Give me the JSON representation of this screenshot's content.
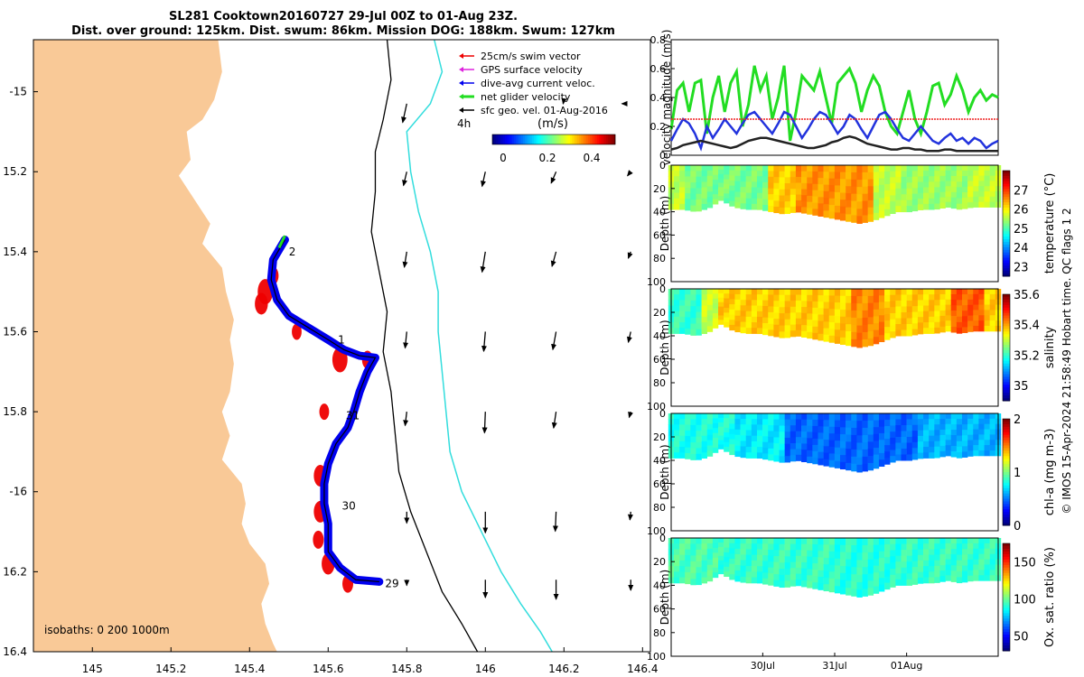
{
  "header": {
    "title_line1": "SL281 Cooktown20160727 29-Jul 00Z to 01-Aug 23Z.",
    "title_line2": "Dist. over ground: 125km. Dist. swum: 86km. Mission DOG: 188km. Swum: 127km"
  },
  "colors": {
    "land": "#f9c997",
    "track": "#0000ee",
    "swim": "#ee0000",
    "gps": "#dd22dd",
    "net": "#22dd22",
    "isobath200": "#000000",
    "isobath1000": "#33dddd",
    "vel_green": "#22dd22",
    "vel_blue": "#2233dd",
    "vel_red": "#ee2222",
    "vel_black": "#222222"
  },
  "map": {
    "xlim": [
      144.85,
      146.42
    ],
    "ylim": [
      16.4,
      14.87
    ],
    "x_ticks": [
      145,
      145.2,
      145.4,
      145.6,
      145.8,
      146,
      146.2,
      146.4
    ],
    "x_tick_labels": [
      "145",
      "145.2",
      "145.4",
      "145.6",
      "145.8",
      "146",
      "146.2",
      "146.4"
    ],
    "y_ticks": [
      15,
      15.2,
      15.4,
      15.6,
      15.8,
      16,
      16.2,
      16.4
    ],
    "y_tick_labels": [
      "-15",
      "15.2",
      "15.4",
      "15.6",
      "15.8",
      "-16",
      "16.2",
      "16.4"
    ],
    "legend": [
      {
        "label": "25cm/s swim vector",
        "color": "#ee0000"
      },
      {
        "label": "GPS surface velocity",
        "color": "#dd22dd"
      },
      {
        "label": "dive-avg current veloc.",
        "color": "#0000ee"
      },
      {
        "label": "net glider velocity",
        "color": "#22dd22"
      },
      {
        "label": "sfc geo. vel. 01-Aug-2016",
        "color": "#000000"
      }
    ],
    "legend_interval": "4h",
    "colorbar_units": "(m/s)",
    "colorbar_ticks": [
      "0",
      "0.2",
      "0.4"
    ],
    "isobath_label": "isobaths: 0   200  1000m",
    "day_labels": [
      {
        "text": "2",
        "lon": 145.5,
        "lat": 15.4
      },
      {
        "text": "1",
        "lon": 145.625,
        "lat": 15.62
      },
      {
        "text": "31",
        "lon": 145.645,
        "lat": 15.81
      },
      {
        "text": "30",
        "lon": 145.635,
        "lat": 16.035
      },
      {
        "text": "29",
        "lon": 145.745,
        "lat": 16.23
      }
    ],
    "track": [
      [
        145.49,
        15.37
      ],
      [
        145.46,
        15.42
      ],
      [
        145.455,
        15.47
      ],
      [
        145.47,
        15.52
      ],
      [
        145.5,
        15.56
      ],
      [
        145.55,
        15.59
      ],
      [
        145.6,
        15.62
      ],
      [
        145.64,
        15.645
      ],
      [
        145.68,
        15.66
      ],
      [
        145.72,
        15.665
      ],
      [
        145.7,
        15.7
      ],
      [
        145.68,
        15.75
      ],
      [
        145.665,
        15.8
      ],
      [
        145.65,
        15.84
      ],
      [
        145.62,
        15.88
      ],
      [
        145.6,
        15.93
      ],
      [
        145.59,
        15.98
      ],
      [
        145.59,
        16.03
      ],
      [
        145.6,
        16.08
      ],
      [
        145.6,
        16.12
      ],
      [
        145.6,
        16.15
      ],
      [
        145.63,
        16.19
      ],
      [
        145.67,
        16.22
      ],
      [
        145.73,
        16.225
      ]
    ],
    "swim_blobs": [
      [
        145.44,
        15.5,
        14
      ],
      [
        145.46,
        15.46,
        10
      ],
      [
        145.43,
        15.53,
        12
      ],
      [
        145.63,
        15.67,
        14
      ],
      [
        145.7,
        15.67,
        10
      ],
      [
        145.59,
        15.8,
        9
      ],
      [
        145.58,
        15.96,
        12
      ],
      [
        145.58,
        16.05,
        12
      ],
      [
        145.575,
        16.12,
        10
      ],
      [
        145.6,
        16.18,
        12
      ],
      [
        145.65,
        16.23,
        10
      ],
      [
        145.52,
        15.6,
        9
      ]
    ],
    "net_segment": [
      [
        145.475,
        15.39
      ],
      [
        145.49,
        15.36
      ]
    ],
    "geo_vectors": [
      [
        145.8,
        15.03,
        -0.05,
        0.23
      ],
      [
        146.2,
        15.02,
        -0.01,
        0.05
      ],
      [
        146.36,
        15.03,
        -0.06,
        0.0
      ],
      [
        145.8,
        15.2,
        -0.04,
        0.17
      ],
      [
        146.0,
        15.2,
        -0.04,
        0.18
      ],
      [
        146.18,
        15.2,
        -0.06,
        0.14
      ],
      [
        146.37,
        15.2,
        -0.04,
        0.05
      ],
      [
        145.8,
        15.4,
        -0.03,
        0.19
      ],
      [
        146.0,
        15.4,
        -0.04,
        0.25
      ],
      [
        146.18,
        15.4,
        -0.05,
        0.18
      ],
      [
        146.37,
        15.4,
        -0.03,
        0.08
      ],
      [
        145.8,
        15.6,
        -0.02,
        0.2
      ],
      [
        146.0,
        15.6,
        -0.02,
        0.24
      ],
      [
        146.18,
        15.6,
        -0.04,
        0.22
      ],
      [
        146.37,
        15.6,
        -0.03,
        0.13
      ],
      [
        145.8,
        15.8,
        -0.02,
        0.17
      ],
      [
        146.0,
        15.8,
        -0.01,
        0.26
      ],
      [
        146.18,
        15.8,
        -0.03,
        0.2
      ],
      [
        146.37,
        15.8,
        -0.02,
        0.07
      ],
      [
        145.8,
        16.05,
        0.0,
        0.14
      ],
      [
        146.0,
        16.05,
        0.0,
        0.26
      ],
      [
        146.18,
        16.05,
        -0.01,
        0.24
      ],
      [
        146.37,
        16.05,
        -0.01,
        0.1
      ],
      [
        145.8,
        16.22,
        0.0,
        0.07
      ],
      [
        146.0,
        16.22,
        0.0,
        0.22
      ],
      [
        146.18,
        16.22,
        0.0,
        0.24
      ],
      [
        146.37,
        16.22,
        0.0,
        0.13
      ]
    ],
    "coast": [
      [
        144.85,
        14.87
      ],
      [
        145.32,
        14.87
      ],
      [
        145.33,
        14.95
      ],
      [
        145.31,
        15.02
      ],
      [
        145.28,
        15.07
      ],
      [
        145.24,
        15.1
      ],
      [
        145.25,
        15.17
      ],
      [
        145.22,
        15.21
      ],
      [
        145.26,
        15.27
      ],
      [
        145.3,
        15.33
      ],
      [
        145.28,
        15.38
      ],
      [
        145.33,
        15.44
      ],
      [
        145.34,
        15.5
      ],
      [
        145.36,
        15.57
      ],
      [
        145.35,
        15.62
      ],
      [
        145.36,
        15.68
      ],
      [
        145.35,
        15.75
      ],
      [
        145.33,
        15.8
      ],
      [
        145.35,
        15.86
      ],
      [
        145.33,
        15.92
      ],
      [
        145.38,
        15.98
      ],
      [
        145.39,
        16.03
      ],
      [
        145.38,
        16.08
      ],
      [
        145.4,
        16.13
      ],
      [
        145.44,
        16.18
      ],
      [
        145.45,
        16.23
      ],
      [
        145.43,
        16.28
      ],
      [
        145.44,
        16.33
      ],
      [
        145.46,
        16.38
      ],
      [
        145.47,
        16.4
      ],
      [
        144.85,
        16.4
      ]
    ],
    "isobath200": [
      [
        145.75,
        14.87
      ],
      [
        145.76,
        14.97
      ],
      [
        145.74,
        15.07
      ],
      [
        145.72,
        15.15
      ],
      [
        145.72,
        15.25
      ],
      [
        145.71,
        15.35
      ],
      [
        145.73,
        15.45
      ],
      [
        145.75,
        15.55
      ],
      [
        145.74,
        15.65
      ],
      [
        145.76,
        15.75
      ],
      [
        145.77,
        15.85
      ],
      [
        145.78,
        15.95
      ],
      [
        145.81,
        16.05
      ],
      [
        145.85,
        16.15
      ],
      [
        145.89,
        16.25
      ],
      [
        145.94,
        16.33
      ],
      [
        145.98,
        16.4
      ]
    ],
    "isobath1000": [
      [
        145.87,
        14.87
      ],
      [
        145.89,
        14.95
      ],
      [
        145.86,
        15.03
      ],
      [
        145.8,
        15.1
      ],
      [
        145.81,
        15.2
      ],
      [
        145.83,
        15.3
      ],
      [
        145.86,
        15.4
      ],
      [
        145.88,
        15.5
      ],
      [
        145.88,
        15.6
      ],
      [
        145.89,
        15.7
      ],
      [
        145.9,
        15.8
      ],
      [
        145.91,
        15.9
      ],
      [
        145.94,
        16.0
      ],
      [
        145.99,
        16.1
      ],
      [
        146.04,
        16.2
      ],
      [
        146.09,
        16.28
      ],
      [
        146.14,
        16.35
      ],
      [
        146.17,
        16.4
      ]
    ]
  },
  "chart_data": [
    {
      "type": "line",
      "title": "",
      "ylabel": "velocity magnitude (m/s)",
      "ylim": [
        0,
        0.8
      ],
      "y_ticks": [
        "0",
        "0.2",
        "0.4",
        "0.6",
        "0.8"
      ],
      "xlim": [
        0,
        100
      ],
      "series": [
        {
          "name": "net glider velocity",
          "color": "#22dd22",
          "values": [
            0.18,
            0.45,
            0.5,
            0.3,
            0.5,
            0.52,
            0.15,
            0.4,
            0.55,
            0.3,
            0.5,
            0.58,
            0.2,
            0.35,
            0.62,
            0.45,
            0.55,
            0.25,
            0.4,
            0.62,
            0.1,
            0.3,
            0.55,
            0.5,
            0.45,
            0.58,
            0.4,
            0.22,
            0.5,
            0.55,
            0.6,
            0.5,
            0.3,
            0.45,
            0.55,
            0.48,
            0.3,
            0.2,
            0.15,
            0.3,
            0.45,
            0.25,
            0.15,
            0.3,
            0.48,
            0.5,
            0.35,
            0.42,
            0.55,
            0.45,
            0.3,
            0.4,
            0.45,
            0.38,
            0.42,
            0.4
          ]
        },
        {
          "name": "dive-avg current veloc.",
          "color": "#2233dd",
          "values": [
            0.1,
            0.18,
            0.25,
            0.22,
            0.15,
            0.05,
            0.2,
            0.12,
            0.18,
            0.25,
            0.2,
            0.15,
            0.22,
            0.28,
            0.3,
            0.25,
            0.2,
            0.15,
            0.22,
            0.3,
            0.28,
            0.2,
            0.12,
            0.18,
            0.25,
            0.3,
            0.28,
            0.22,
            0.15,
            0.2,
            0.28,
            0.25,
            0.18,
            0.12,
            0.2,
            0.28,
            0.3,
            0.25,
            0.18,
            0.12,
            0.1,
            0.15,
            0.2,
            0.15,
            0.1,
            0.08,
            0.12,
            0.15,
            0.1,
            0.12,
            0.08,
            0.12,
            0.1,
            0.05,
            0.08,
            0.1
          ]
        },
        {
          "name": "25cm/s swim vector",
          "color": "#ee2222",
          "values": [
            0.25,
            0.25,
            0.25,
            0.25,
            0.25,
            0.25,
            0.25,
            0.25,
            0.25,
            0.25,
            0.25,
            0.25,
            0.25,
            0.25,
            0.25,
            0.25,
            0.25,
            0.25,
            0.25,
            0.25,
            0.25,
            0.25,
            0.25,
            0.25,
            0.25,
            0.25,
            0.25,
            0.25,
            0.25,
            0.25,
            0.25,
            0.25,
            0.25,
            0.25,
            0.25,
            0.25,
            0.25,
            0.25,
            0.25,
            0.25,
            0.25,
            0.25,
            0.25,
            0.25,
            0.25,
            0.25,
            0.25,
            0.25,
            0.25,
            0.25,
            0.25,
            0.25,
            0.25,
            0.25,
            0.25,
            0.25
          ]
        },
        {
          "name": "sfc geo. vel.",
          "color": "#222222",
          "values": [
            0.04,
            0.05,
            0.07,
            0.08,
            0.09,
            0.1,
            0.09,
            0.08,
            0.07,
            0.06,
            0.05,
            0.06,
            0.08,
            0.1,
            0.11,
            0.12,
            0.12,
            0.11,
            0.1,
            0.09,
            0.08,
            0.07,
            0.06,
            0.05,
            0.05,
            0.06,
            0.07,
            0.09,
            0.1,
            0.12,
            0.13,
            0.12,
            0.1,
            0.08,
            0.07,
            0.06,
            0.05,
            0.04,
            0.04,
            0.05,
            0.05,
            0.04,
            0.04,
            0.03,
            0.03,
            0.03,
            0.04,
            0.04,
            0.03,
            0.03,
            0.03,
            0.03,
            0.03,
            0.03,
            0.03,
            0.03
          ]
        }
      ]
    },
    {
      "type": "heatmap",
      "variable": "temperature",
      "clabel": "temperature (°C)",
      "clim": [
        22.5,
        28
      ],
      "c_ticks": [
        "23",
        "24",
        "25",
        "26",
        "27"
      ],
      "c_tick_values": [
        23,
        24,
        25,
        26,
        27
      ],
      "ylabel": "Depth (m)",
      "y_ticks": [
        "0",
        "20",
        "40",
        "60",
        "80",
        "100"
      ],
      "ylim": [
        0,
        100
      ],
      "base_value": 25.6,
      "features": [
        [
          0.3,
          0.6,
          26.2
        ],
        [
          0.38,
          0.62,
          26.5
        ],
        [
          0.05,
          0.3,
          25.2
        ],
        [
          0.7,
          0.9,
          25.4
        ]
      ],
      "bottom_depth": [
        38,
        38,
        40,
        37,
        30,
        36,
        38,
        38,
        40,
        42,
        40,
        42,
        44,
        46,
        48,
        50,
        48,
        44,
        40,
        40,
        38,
        38,
        36,
        38,
        36,
        36,
        36
      ]
    },
    {
      "type": "heatmap",
      "variable": "salinity",
      "clabel": "salinity",
      "clim": [
        34.9,
        35.6
      ],
      "c_ticks": [
        "35",
        "35.2",
        "35.4",
        "35.6"
      ],
      "c_tick_values": [
        35,
        35.2,
        35.4,
        35.6
      ],
      "ylabel": "Depth (m)",
      "y_ticks": [
        "0",
        "20",
        "40",
        "60",
        "80",
        "100"
      ],
      "ylim": [
        0,
        100
      ],
      "base_value": 35.37,
      "features": [
        [
          0.0,
          0.1,
          35.2
        ],
        [
          0.1,
          0.15,
          35.3
        ],
        [
          0.55,
          0.65,
          35.42
        ],
        [
          0.85,
          0.95,
          35.45
        ]
      ],
      "bottom_depth": [
        38,
        38,
        40,
        37,
        30,
        36,
        38,
        38,
        40,
        42,
        40,
        42,
        44,
        46,
        48,
        50,
        48,
        44,
        40,
        40,
        38,
        38,
        36,
        38,
        36,
        36,
        36
      ]
    },
    {
      "type": "heatmap",
      "variable": "chl-a",
      "clabel": "chl-a (mg m-3)",
      "clim": [
        0,
        2
      ],
      "c_ticks": [
        "0",
        "1",
        "2"
      ],
      "c_tick_values": [
        0,
        1,
        2
      ],
      "ylabel": "Depth (m)",
      "y_ticks": [
        "0",
        "20",
        "40",
        "60",
        "80",
        "100"
      ],
      "ylim": [
        0,
        100
      ],
      "base_value": 0.72,
      "features": [
        [
          0.35,
          0.75,
          0.45
        ],
        [
          0.0,
          0.2,
          0.8
        ],
        [
          0.75,
          1.0,
          0.6
        ]
      ],
      "bottom_depth": [
        38,
        38,
        40,
        37,
        30,
        36,
        38,
        38,
        40,
        42,
        40,
        42,
        44,
        46,
        48,
        50,
        48,
        44,
        40,
        40,
        38,
        38,
        36,
        38,
        36,
        36,
        36
      ]
    },
    {
      "type": "heatmap",
      "variable": "oxygen saturation",
      "clabel": "Ox. sat. ratio (%)",
      "clim": [
        30,
        175
      ],
      "c_ticks": [
        "50",
        "100",
        "150"
      ],
      "c_tick_values": [
        50,
        100,
        150
      ],
      "ylabel": "Depth (m)",
      "y_ticks": [
        "0",
        "20",
        "40",
        "60",
        "80",
        "100"
      ],
      "ylim": [
        0,
        100
      ],
      "base_value": 92,
      "features": [
        [
          0.0,
          0.15,
          95
        ],
        [
          0.5,
          0.7,
          90
        ]
      ],
      "bottom_depth": [
        38,
        38,
        40,
        37,
        30,
        36,
        38,
        38,
        40,
        42,
        40,
        42,
        44,
        46,
        48,
        50,
        48,
        44,
        40,
        40,
        38,
        38,
        36,
        38,
        36,
        36,
        36
      ],
      "x_ticks": [
        "30Jul",
        "31Jul",
        "01Aug"
      ],
      "x_tick_values": [
        0.28,
        0.5,
        0.72
      ]
    }
  ],
  "footer": {
    "qc_note": "© IMOS 15-Apr-2024 21:58:49 Hobart time. QC flags 1  2"
  }
}
